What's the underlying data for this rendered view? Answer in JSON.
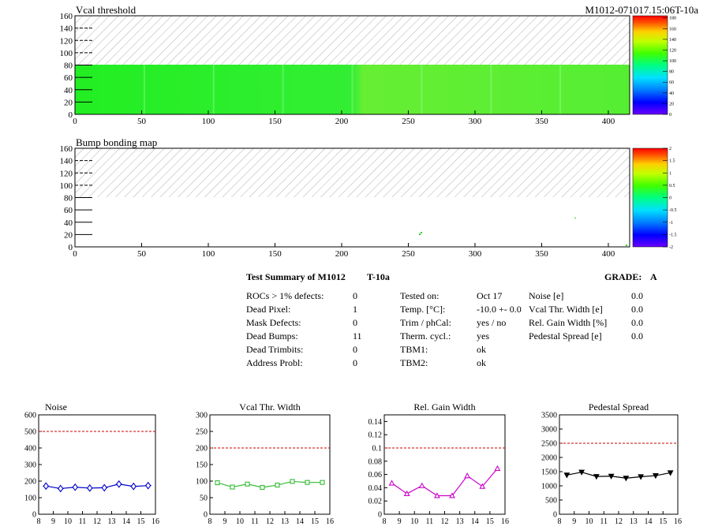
{
  "header": {
    "title": "Vcal threshold",
    "module_id": "M1012-071017.15:06T-10a"
  },
  "maps": {
    "threshold": {
      "title": "Vcal threshold",
      "x_ticks": [
        "0",
        "50",
        "100",
        "150",
        "200",
        "250",
        "300",
        "350",
        "400"
      ],
      "y_ticks": [
        "0",
        "20",
        "40",
        "60",
        "80",
        "100",
        "120",
        "140",
        "160"
      ],
      "palette_ticks": [
        "0",
        "20",
        "40",
        "60",
        "80",
        "100",
        "120",
        "140",
        "160",
        "180"
      ]
    },
    "bump": {
      "title": "Bump bonding map",
      "x_ticks": [
        "0",
        "50",
        "100",
        "150",
        "200",
        "250",
        "300",
        "350",
        "400"
      ],
      "y_ticks": [
        "0",
        "20",
        "40",
        "60",
        "80",
        "100",
        "120",
        "140",
        "160"
      ],
      "palette_ticks": [
        "-2",
        "-1.5",
        "-1",
        "-0.5",
        "0",
        "0.5",
        "1",
        "1.5",
        "2"
      ]
    }
  },
  "summary": {
    "title": "Test Summary of M1012",
    "test_tag": "T-10a",
    "grade_label": "GRADE:",
    "grade": "A",
    "left": [
      {
        "label": "ROCs > 1% defects:",
        "value": "0"
      },
      {
        "label": "Dead Pixel:",
        "value": "1"
      },
      {
        "label": "Mask Defects:",
        "value": "0"
      },
      {
        "label": "Dead Bumps:",
        "value": "11"
      },
      {
        "label": "Dead Trimbits:",
        "value": "0"
      },
      {
        "label": "Address Probl:",
        "value": "0"
      }
    ],
    "middle": [
      {
        "label": "Tested on:",
        "value": "Oct 17"
      },
      {
        "label": "Temp. [°C]:",
        "value": "-10.0 +- 0.0"
      },
      {
        "label": "Trim / phCal:",
        "value": "yes / no"
      },
      {
        "label": "Therm. cycl.:",
        "value": "yes"
      },
      {
        "label": "TBM1:",
        "value": "ok"
      },
      {
        "label": "TBM2:",
        "value": "ok"
      }
    ],
    "right": [
      {
        "label": "Noise [e]",
        "value": "0.0"
      },
      {
        "label": "Vcal Thr. Width [e]",
        "value": "0.0"
      },
      {
        "label": "Rel. Gain Width [%]",
        "value": "0.0"
      },
      {
        "label": "Pedestal Spread [e]",
        "value": "0.0"
      }
    ]
  },
  "chart_data": [
    {
      "type": "line",
      "title": "Noise",
      "x": [
        8.5,
        9.5,
        10.5,
        11.5,
        12.5,
        13.5,
        14.5,
        15.5
      ],
      "series": [
        {
          "values": [
            170,
            155,
            163,
            158,
            160,
            182,
            168,
            173
          ]
        }
      ],
      "xlim": [
        8,
        16
      ],
      "ylim": [
        0,
        600
      ],
      "x_ticks": [
        8,
        9,
        10,
        11,
        12,
        13,
        14,
        15,
        16
      ],
      "y_ticks": [
        0,
        100,
        200,
        300,
        400,
        500,
        600
      ],
      "threshold": 500,
      "color": "#0000cc",
      "marker": "diamond"
    },
    {
      "type": "line",
      "title": "Vcal Thr. Width",
      "x": [
        8.5,
        9.5,
        10.5,
        11.5,
        12.5,
        13.5,
        14.5,
        15.5
      ],
      "series": [
        {
          "values": [
            95,
            82,
            91,
            81,
            88,
            99,
            96,
            96
          ]
        }
      ],
      "xlim": [
        8,
        16
      ],
      "ylim": [
        0,
        300
      ],
      "x_ticks": [
        8,
        9,
        10,
        11,
        12,
        13,
        14,
        15,
        16
      ],
      "y_ticks": [
        0,
        50,
        100,
        150,
        200,
        250,
        300
      ],
      "threshold": 200,
      "color": "#33bb33",
      "marker": "square"
    },
    {
      "type": "line",
      "title": "Rel. Gain Width",
      "x": [
        8.5,
        9.5,
        10.5,
        11.5,
        12.5,
        13.5,
        14.5,
        15.5
      ],
      "series": [
        {
          "values": [
            0.047,
            0.031,
            0.043,
            0.028,
            0.028,
            0.058,
            0.042,
            0.069
          ]
        }
      ],
      "xlim": [
        8,
        16
      ],
      "ylim": [
        0,
        0.15
      ],
      "x_ticks": [
        8,
        9,
        10,
        11,
        12,
        13,
        14,
        15,
        16
      ],
      "y_ticks": [
        "0",
        "0.02",
        "0.04",
        "0.06",
        "0.08",
        "0.1",
        "0.12",
        "0.14"
      ],
      "threshold": 0.1,
      "color": "#cc00cc",
      "marker": "triangle-up"
    },
    {
      "type": "line",
      "title": "Pedestal Spread",
      "x": [
        8.5,
        9.5,
        10.5,
        11.5,
        12.5,
        13.5,
        14.5,
        15.5
      ],
      "series": [
        {
          "values": [
            1380,
            1480,
            1330,
            1340,
            1270,
            1320,
            1360,
            1460
          ]
        }
      ],
      "xlim": [
        8,
        16
      ],
      "ylim": [
        0,
        3500
      ],
      "x_ticks": [
        8,
        9,
        10,
        11,
        12,
        13,
        14,
        15,
        16
      ],
      "y_ticks": [
        0,
        500,
        1000,
        1500,
        2000,
        2500,
        3000,
        3500
      ],
      "threshold": 2500,
      "color": "#000000",
      "marker": "triangle-down"
    }
  ]
}
